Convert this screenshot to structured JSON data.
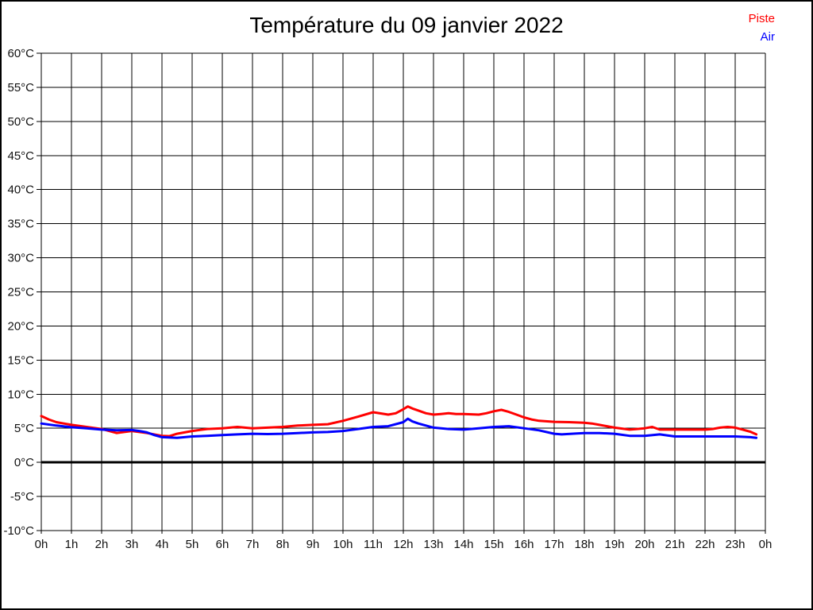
{
  "page": {
    "background": "#ffffff",
    "border_color": "#000000"
  },
  "chart_data": {
    "type": "line",
    "title": "Température du 09 janvier 2022",
    "xlabel": "",
    "ylabel": "",
    "grid": true,
    "grid_color": "#000000",
    "xlim": [
      0,
      24
    ],
    "ylim": [
      -10,
      60
    ],
    "y_tick_step": 5,
    "x_tick_step_hours": 1,
    "zero_line": {
      "value": 0,
      "color": "#000000",
      "width": 3
    },
    "legend_position": "top-right",
    "legend": [
      {
        "label": "Piste",
        "color": "#ff0000"
      },
      {
        "label": "Air",
        "color": "#0000ff"
      }
    ],
    "x_ticks": [
      {
        "value": 0,
        "label": "0h"
      },
      {
        "value": 1,
        "label": "1h"
      },
      {
        "value": 2,
        "label": "2h"
      },
      {
        "value": 3,
        "label": "3h"
      },
      {
        "value": 4,
        "label": "4h"
      },
      {
        "value": 5,
        "label": "5h"
      },
      {
        "value": 6,
        "label": "6h"
      },
      {
        "value": 7,
        "label": "7h"
      },
      {
        "value": 8,
        "label": "8h"
      },
      {
        "value": 9,
        "label": "9h"
      },
      {
        "value": 10,
        "label": "10h"
      },
      {
        "value": 11,
        "label": "11h"
      },
      {
        "value": 12,
        "label": "12h"
      },
      {
        "value": 13,
        "label": "13h"
      },
      {
        "value": 14,
        "label": "14h"
      },
      {
        "value": 15,
        "label": "15h"
      },
      {
        "value": 16,
        "label": "16h"
      },
      {
        "value": 17,
        "label": "17h"
      },
      {
        "value": 18,
        "label": "18h"
      },
      {
        "value": 19,
        "label": "19h"
      },
      {
        "value": 20,
        "label": "20h"
      },
      {
        "value": 21,
        "label": "21h"
      },
      {
        "value": 22,
        "label": "22h"
      },
      {
        "value": 23,
        "label": "23h"
      },
      {
        "value": 24,
        "label": "0h"
      }
    ],
    "y_ticks": [
      {
        "value": 60,
        "label": "60°C"
      },
      {
        "value": 55,
        "label": "55°C"
      },
      {
        "value": 50,
        "label": "50°C"
      },
      {
        "value": 45,
        "label": "45°C"
      },
      {
        "value": 40,
        "label": "40°C"
      },
      {
        "value": 35,
        "label": "35°C"
      },
      {
        "value": 30,
        "label": "30°C"
      },
      {
        "value": 25,
        "label": "25°C"
      },
      {
        "value": 20,
        "label": "20°C"
      },
      {
        "value": 15,
        "label": "15°C"
      },
      {
        "value": 10,
        "label": "10°C"
      },
      {
        "value": 5,
        "label": "5°C"
      },
      {
        "value": 0,
        "label": "0°C"
      },
      {
        "value": -5,
        "label": "-5°C"
      },
      {
        "value": -10,
        "label": "-10°C"
      }
    ],
    "series": [
      {
        "name": "Piste",
        "color": "#ff0000",
        "points": [
          [
            0,
            6.8
          ],
          [
            0.25,
            6.3
          ],
          [
            0.5,
            5.9
          ],
          [
            0.75,
            5.7
          ],
          [
            1,
            5.5
          ],
          [
            1.5,
            5.2
          ],
          [
            2,
            4.9
          ],
          [
            2.5,
            4.3
          ],
          [
            3,
            4.6
          ],
          [
            3.5,
            4.3
          ],
          [
            4,
            3.9
          ],
          [
            4.25,
            3.85
          ],
          [
            4.5,
            4.2
          ],
          [
            5,
            4.6
          ],
          [
            5.5,
            4.9
          ],
          [
            6,
            5.0
          ],
          [
            6.5,
            5.2
          ],
          [
            7,
            5.0
          ],
          [
            7.5,
            5.1
          ],
          [
            8,
            5.2
          ],
          [
            8.5,
            5.4
          ],
          [
            9,
            5.5
          ],
          [
            9.5,
            5.6
          ],
          [
            10,
            6.1
          ],
          [
            10.5,
            6.7
          ],
          [
            11,
            7.35
          ],
          [
            11.5,
            7.0
          ],
          [
            11.75,
            7.2
          ],
          [
            12,
            7.8
          ],
          [
            12.15,
            8.2
          ],
          [
            12.3,
            7.9
          ],
          [
            12.5,
            7.6
          ],
          [
            12.75,
            7.2
          ],
          [
            13,
            7.0
          ],
          [
            13.25,
            7.1
          ],
          [
            13.5,
            7.2
          ],
          [
            13.75,
            7.1
          ],
          [
            14,
            7.1
          ],
          [
            14.5,
            7.0
          ],
          [
            14.75,
            7.2
          ],
          [
            15,
            7.5
          ],
          [
            15.25,
            7.7
          ],
          [
            15.5,
            7.4
          ],
          [
            15.75,
            7.0
          ],
          [
            16,
            6.6
          ],
          [
            16.25,
            6.3
          ],
          [
            16.5,
            6.1
          ],
          [
            17,
            5.95
          ],
          [
            17.5,
            5.9
          ],
          [
            18,
            5.8
          ],
          [
            18.25,
            5.7
          ],
          [
            18.5,
            5.5
          ],
          [
            19,
            5.1
          ],
          [
            19.5,
            4.8
          ],
          [
            19.75,
            4.9
          ],
          [
            20,
            5.0
          ],
          [
            20.25,
            5.2
          ],
          [
            20.5,
            4.8
          ],
          [
            21,
            4.8
          ],
          [
            21.5,
            4.8
          ],
          [
            22,
            4.8
          ],
          [
            22.25,
            4.9
          ],
          [
            22.5,
            5.1
          ],
          [
            22.75,
            5.2
          ],
          [
            23,
            5.1
          ],
          [
            23.25,
            4.8
          ],
          [
            23.5,
            4.5
          ],
          [
            23.7,
            4.1
          ]
        ]
      },
      {
        "name": "Air",
        "color": "#0000ff",
        "points": [
          [
            0,
            5.7
          ],
          [
            0.5,
            5.4
          ],
          [
            1,
            5.15
          ],
          [
            1.5,
            5.0
          ],
          [
            2,
            4.8
          ],
          [
            2.5,
            4.7
          ],
          [
            3,
            4.75
          ],
          [
            3.25,
            4.6
          ],
          [
            3.5,
            4.4
          ],
          [
            3.75,
            4.0
          ],
          [
            4,
            3.7
          ],
          [
            4.5,
            3.6
          ],
          [
            5,
            3.8
          ],
          [
            5.5,
            3.9
          ],
          [
            6,
            4.0
          ],
          [
            6.5,
            4.1
          ],
          [
            7,
            4.2
          ],
          [
            7.5,
            4.15
          ],
          [
            8,
            4.2
          ],
          [
            8.5,
            4.3
          ],
          [
            9,
            4.4
          ],
          [
            9.5,
            4.45
          ],
          [
            10,
            4.6
          ],
          [
            10.5,
            4.9
          ],
          [
            11,
            5.2
          ],
          [
            11.5,
            5.3
          ],
          [
            12,
            5.9
          ],
          [
            12.15,
            6.4
          ],
          [
            12.3,
            6.0
          ],
          [
            12.5,
            5.7
          ],
          [
            13,
            5.1
          ],
          [
            13.5,
            4.9
          ],
          [
            14,
            4.8
          ],
          [
            14.5,
            5.0
          ],
          [
            15,
            5.2
          ],
          [
            15.5,
            5.3
          ],
          [
            16,
            5.0
          ],
          [
            16.5,
            4.7
          ],
          [
            17,
            4.2
          ],
          [
            17.25,
            4.1
          ],
          [
            17.75,
            4.25
          ],
          [
            18,
            4.3
          ],
          [
            18.5,
            4.3
          ],
          [
            19,
            4.2
          ],
          [
            19.5,
            3.9
          ],
          [
            20,
            3.9
          ],
          [
            20.5,
            4.1
          ],
          [
            21,
            3.8
          ],
          [
            21.5,
            3.8
          ],
          [
            22,
            3.8
          ],
          [
            22.5,
            3.8
          ],
          [
            23,
            3.8
          ],
          [
            23.5,
            3.7
          ],
          [
            23.7,
            3.6
          ]
        ]
      }
    ]
  }
}
